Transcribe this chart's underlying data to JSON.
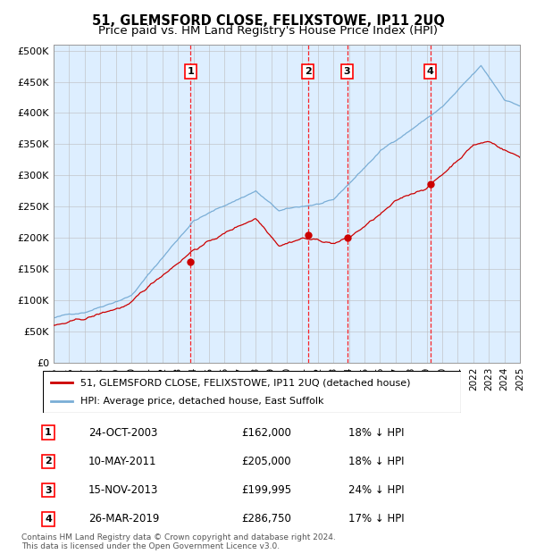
{
  "title": "51, GLEMSFORD CLOSE, FELIXSTOWE, IP11 2UQ",
  "subtitle": "Price paid vs. HM Land Registry's House Price Index (HPI)",
  "ylim": [
    0,
    510000
  ],
  "yticks": [
    0,
    50000,
    100000,
    150000,
    200000,
    250000,
    300000,
    350000,
    400000,
    450000,
    500000
  ],
  "x_start_year": 1995,
  "x_end_year": 2025,
  "hpi_color": "#7aaed6",
  "price_color": "#cc0000",
  "bg_color": "#ddeeff",
  "grid_color": "#bbbbbb",
  "purchases": [
    {
      "year": 2003.81,
      "price": 162000,
      "label": "1"
    },
    {
      "year": 2011.36,
      "price": 205000,
      "label": "2"
    },
    {
      "year": 2013.88,
      "price": 199995,
      "label": "3"
    },
    {
      "year": 2019.23,
      "price": 286750,
      "label": "4"
    }
  ],
  "legend_line1": "51, GLEMSFORD CLOSE, FELIXSTOWE, IP11 2UQ (detached house)",
  "legend_line2": "HPI: Average price, detached house, East Suffolk",
  "table": [
    {
      "num": "1",
      "date": "24-OCT-2003",
      "price": "£162,000",
      "hpi": "18% ↓ HPI"
    },
    {
      "num": "2",
      "date": "10-MAY-2011",
      "price": "£205,000",
      "hpi": "18% ↓ HPI"
    },
    {
      "num": "3",
      "date": "15-NOV-2013",
      "price": "£199,995",
      "hpi": "24% ↓ HPI"
    },
    {
      "num": "4",
      "date": "26-MAR-2019",
      "price": "£286,750",
      "hpi": "17% ↓ HPI"
    }
  ],
  "footer_line1": "Contains HM Land Registry data © Crown copyright and database right 2024.",
  "footer_line2": "This data is licensed under the Open Government Licence v3.0."
}
